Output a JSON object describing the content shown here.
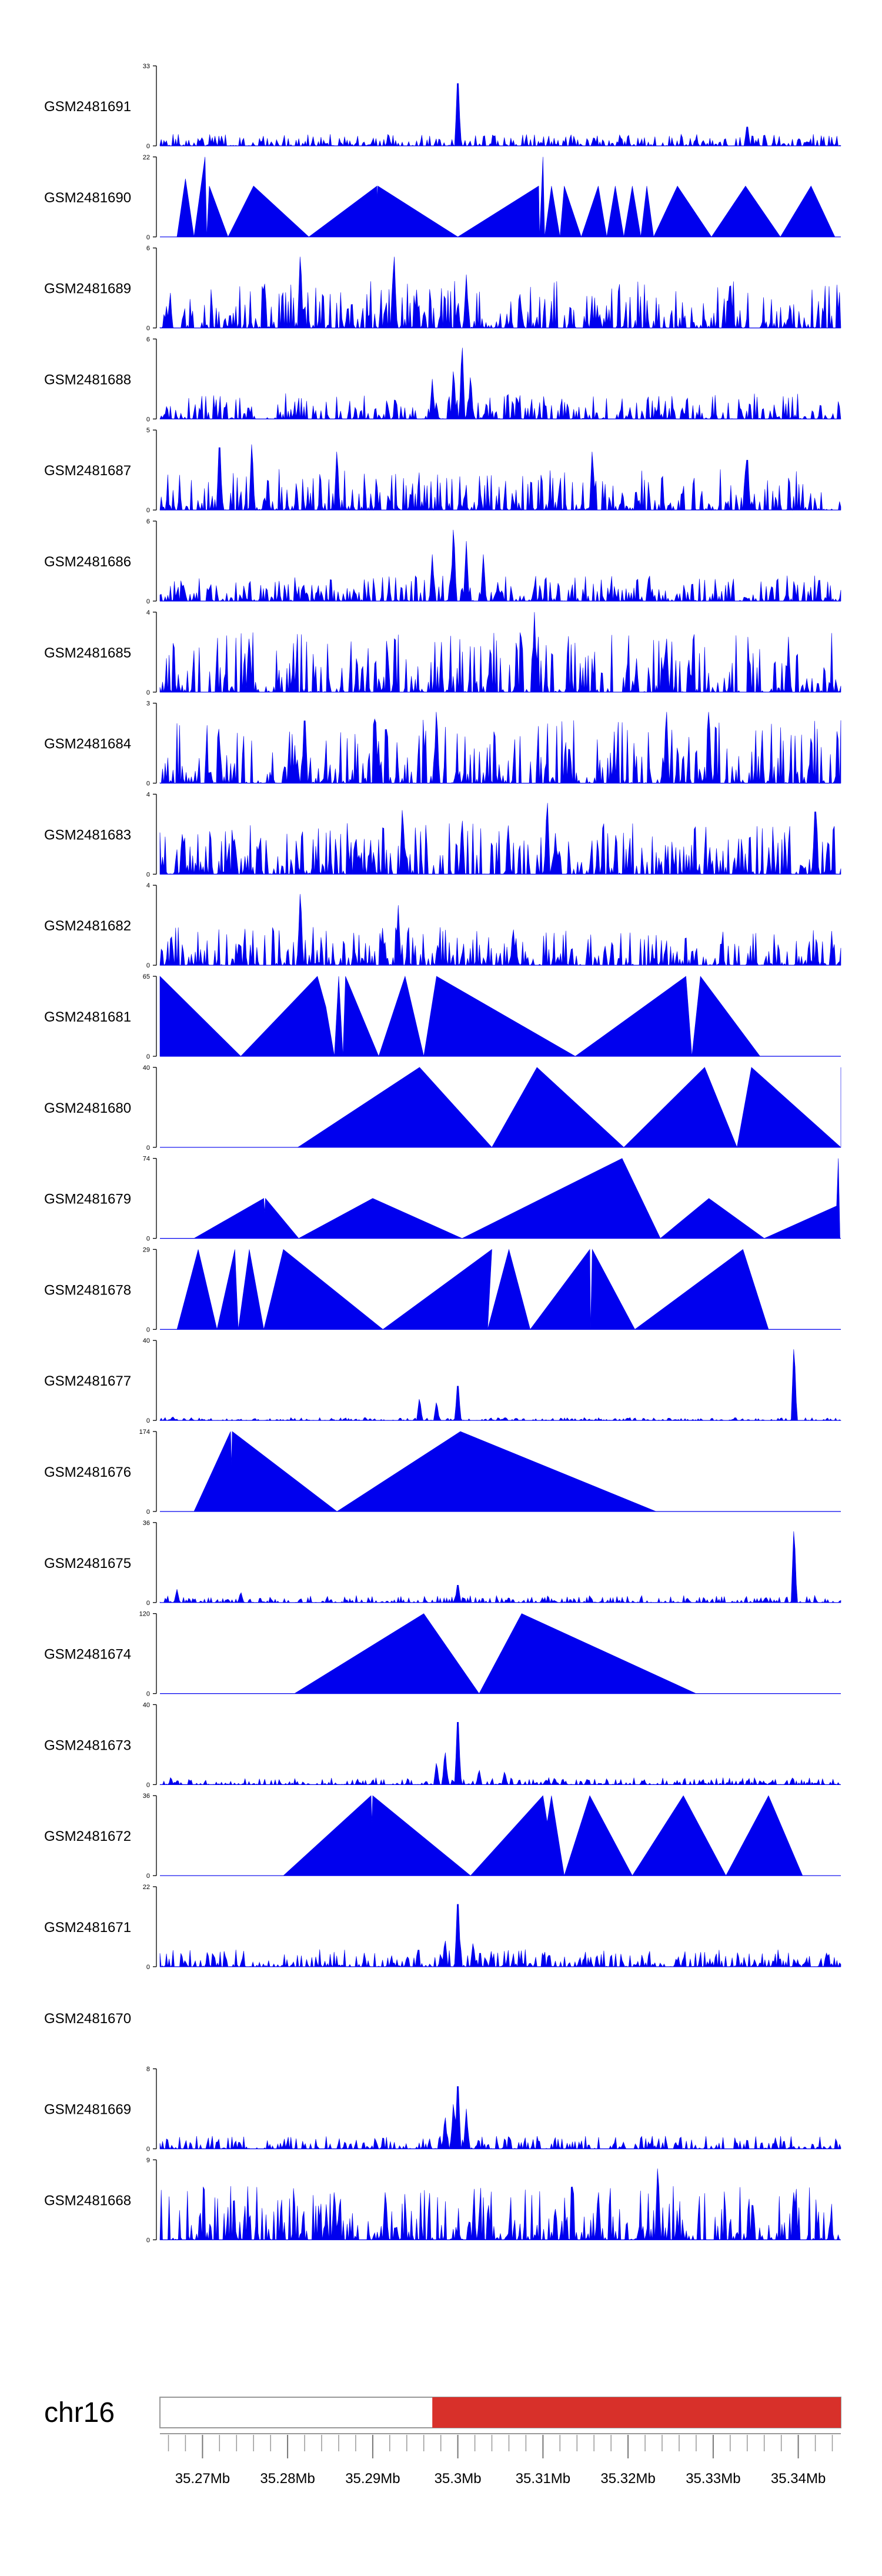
{
  "chart_data": {
    "type": "area",
    "chromosome": "chr16",
    "xlim": [
      35.265,
      35.345
    ],
    "x_ticks": [
      "35.27Mb",
      "35.28Mb",
      "35.29Mb",
      "35.3Mb",
      "35.31Mb",
      "35.32Mb",
      "35.33Mb",
      "35.34Mb"
    ],
    "x_tick_values": [
      35.27,
      35.28,
      35.29,
      35.3,
      35.31,
      35.32,
      35.33,
      35.34
    ],
    "ideogram": {
      "highlight_start": 35.297,
      "highlight_end": 35.345,
      "highlight_color": "#d8302a"
    },
    "series_color": "#0000ee",
    "tracks": [
      {
        "name": "GSM2481691",
        "ymax": 33,
        "ymin_label": "0",
        "ymax_label": "33",
        "style": "spiky",
        "peaks": [
          [
            35.3,
            33
          ],
          [
            35.334,
            10
          ],
          [
            35.316,
            4
          ]
        ],
        "base": 3,
        "seed": 1
      },
      {
        "name": "GSM2481690",
        "ymax": 22,
        "ymin_label": "0",
        "ymax_label": "22",
        "style": "points",
        "points": [
          [
            35.267,
            0
          ],
          [
            35.268,
            16
          ],
          [
            35.269,
            0
          ],
          [
            35.2703,
            22
          ],
          [
            35.2705,
            0
          ],
          [
            35.2708,
            14
          ],
          [
            35.273,
            0
          ],
          [
            35.276,
            14
          ],
          [
            35.2825,
            0
          ],
          [
            35.2905,
            14
          ],
          [
            35.2905,
            10
          ],
          [
            35.2906,
            14
          ],
          [
            35.3,
            0
          ],
          [
            35.3095,
            14
          ],
          [
            35.3096,
            0
          ],
          [
            35.31,
            22
          ],
          [
            35.3102,
            0
          ],
          [
            35.311,
            14
          ],
          [
            35.312,
            0
          ],
          [
            35.3125,
            14
          ],
          [
            35.3145,
            0
          ],
          [
            35.3165,
            14
          ],
          [
            35.3175,
            0
          ],
          [
            35.3185,
            14
          ],
          [
            35.3195,
            0
          ],
          [
            35.3205,
            14
          ],
          [
            35.3215,
            0
          ],
          [
            35.3222,
            14
          ],
          [
            35.323,
            0
          ],
          [
            35.3258,
            14
          ],
          [
            35.3298,
            0
          ],
          [
            35.3338,
            14
          ],
          [
            35.3379,
            0
          ],
          [
            35.3415,
            14
          ],
          [
            35.3443,
            0
          ]
        ]
      },
      {
        "name": "GSM2481689",
        "ymax": 6,
        "ymin_label": "0",
        "ymax_label": "6",
        "style": "spiky",
        "peaks": [
          [
            35.2815,
            6
          ],
          [
            35.2925,
            6
          ],
          [
            35.301,
            4
          ],
          [
            35.332,
            4
          ]
        ],
        "base": 2.2,
        "seed": 2
      },
      {
        "name": "GSM2481688",
        "ymax": 6,
        "ymin_label": "0",
        "ymax_label": "6",
        "style": "spiky",
        "peaks": [
          [
            35.3005,
            6
          ],
          [
            35.2995,
            4
          ],
          [
            35.297,
            3
          ],
          [
            35.3015,
            3.5
          ]
        ],
        "base": 1.2,
        "seed": 3
      },
      {
        "name": "GSM2481687",
        "ymax": 5,
        "ymin_label": "0",
        "ymax_label": "5",
        "style": "spiky",
        "peaks": [
          [
            35.272,
            5
          ],
          [
            35.2758,
            4.5
          ],
          [
            35.2858,
            4
          ],
          [
            35.3158,
            4
          ],
          [
            35.334,
            4
          ]
        ],
        "base": 1.6,
        "seed": 4
      },
      {
        "name": "GSM2481686",
        "ymax": 6,
        "ymin_label": "0",
        "ymax_label": "6",
        "style": "spiky",
        "peaks": [
          [
            35.2995,
            6
          ],
          [
            35.301,
            4.5
          ],
          [
            35.297,
            3.5
          ],
          [
            35.303,
            3.5
          ]
        ],
        "base": 1.2,
        "seed": 5
      },
      {
        "name": "GSM2481685",
        "ymax": 4,
        "ymin_label": "0",
        "ymax_label": "4",
        "style": "spiky",
        "peaks": [
          [
            35.309,
            4
          ],
          [
            35.2755,
            3
          ],
          [
            35.3245,
            3
          ]
        ],
        "base": 1.9,
        "seed": 6
      },
      {
        "name": "GSM2481684",
        "ymax": 3,
        "ymin_label": "0",
        "ymax_label": "3",
        "style": "spiky",
        "peaks": [
          [
            35.282,
            3
          ],
          [
            35.2975,
            3
          ],
          [
            35.3245,
            3
          ],
          [
            35.2903,
            3
          ],
          [
            35.3295,
            3
          ]
        ],
        "base": 1.5,
        "seed": 7
      },
      {
        "name": "GSM2481683",
        "ymax": 4,
        "ymin_label": "0",
        "ymax_label": "4",
        "style": "spiky",
        "peaks": [
          [
            35.3105,
            4
          ],
          [
            35.342,
            4
          ],
          [
            35.2935,
            3.6
          ],
          [
            35.3005,
            3
          ]
        ],
        "base": 1.6,
        "seed": 8
      },
      {
        "name": "GSM2481682",
        "ymax": 4,
        "ymin_label": "0",
        "ymax_label": "4",
        "style": "spiky",
        "peaks": [
          [
            35.2815,
            4
          ],
          [
            35.293,
            3
          ],
          [
            35.3065,
            2
          ]
        ],
        "base": 1.2,
        "seed": 9
      },
      {
        "name": "GSM2481681",
        "ymax": 65,
        "ymin_label": "0",
        "ymax_label": "65",
        "style": "points",
        "points": [
          [
            35.265,
            65
          ],
          [
            35.2745,
            0
          ],
          [
            35.2835,
            65
          ],
          [
            35.2845,
            40
          ],
          [
            35.2855,
            0
          ],
          [
            35.286,
            65
          ],
          [
            35.2865,
            0
          ],
          [
            35.2868,
            65
          ],
          [
            35.2907,
            0
          ],
          [
            35.2938,
            65
          ],
          [
            35.296,
            0
          ],
          [
            35.2975,
            65
          ],
          [
            35.3138,
            0
          ],
          [
            35.3268,
            65
          ],
          [
            35.3275,
            0
          ],
          [
            35.3285,
            65
          ],
          [
            35.3355,
            0
          ]
        ]
      },
      {
        "name": "GSM2481680",
        "ymax": 40,
        "ymin_label": "0",
        "ymax_label": "40",
        "style": "points",
        "points": [
          [
            35.2812,
            0
          ],
          [
            35.2955,
            40
          ],
          [
            35.304,
            0
          ],
          [
            35.3093,
            40
          ],
          [
            35.3195,
            0
          ],
          [
            35.329,
            40
          ],
          [
            35.3328,
            0
          ],
          [
            35.3345,
            40
          ],
          [
            35.345,
            0
          ],
          [
            35.345,
            40
          ]
        ]
      },
      {
        "name": "GSM2481679",
        "ymax": 74,
        "ymin_label": "0",
        "ymax_label": "74",
        "style": "points",
        "points": [
          [
            35.269,
            0
          ],
          [
            35.2772,
            37
          ],
          [
            35.2773,
            24
          ],
          [
            35.2774,
            37
          ],
          [
            35.2813,
            0
          ],
          [
            35.29,
            37
          ],
          [
            35.3005,
            0
          ],
          [
            35.3193,
            74
          ],
          [
            35.3238,
            0
          ],
          [
            35.3295,
            37
          ],
          [
            35.336,
            0
          ],
          [
            35.3445,
            30
          ],
          [
            35.3447,
            74
          ],
          [
            35.3449,
            0
          ]
        ]
      },
      {
        "name": "GSM2481678",
        "ymax": 29,
        "ymin_label": "0",
        "ymax_label": "29",
        "style": "points",
        "points": [
          [
            35.267,
            0
          ],
          [
            35.2695,
            29
          ],
          [
            35.2717,
            0
          ],
          [
            35.2738,
            29
          ],
          [
            35.2742,
            0
          ],
          [
            35.2755,
            29
          ],
          [
            35.2772,
            0
          ],
          [
            35.2795,
            29
          ],
          [
            35.2912,
            0
          ],
          [
            35.304,
            29
          ],
          [
            35.3035,
            0
          ],
          [
            35.306,
            29
          ],
          [
            35.3085,
            0
          ],
          [
            35.3155,
            29
          ],
          [
            35.3156,
            0
          ],
          [
            35.3158,
            29
          ],
          [
            35.3208,
            0
          ],
          [
            35.3335,
            29
          ],
          [
            35.3365,
            0
          ]
        ]
      },
      {
        "name": "GSM2481677",
        "ymax": 40,
        "ymin_label": "0",
        "ymax_label": "40",
        "style": "spiky",
        "peaks": [
          [
            35.3395,
            40
          ],
          [
            35.3,
            22
          ],
          [
            35.2955,
            12
          ],
          [
            35.2975,
            10
          ],
          [
            35.2665,
            2
          ]
        ],
        "base": 0.9,
        "seed": 10
      },
      {
        "name": "GSM2481676",
        "ymax": 174,
        "ymin_label": "0",
        "ymax_label": "174",
        "style": "points",
        "points": [
          [
            35.269,
            0
          ],
          [
            35.2733,
            174
          ],
          [
            35.2734,
            100
          ],
          [
            35.2735,
            174
          ],
          [
            35.2858,
            0
          ],
          [
            35.3003,
            174
          ],
          [
            35.3233,
            0
          ]
        ]
      },
      {
        "name": "GSM2481675",
        "ymax": 36,
        "ymin_label": "0",
        "ymax_label": "36",
        "style": "spiky",
        "peaks": [
          [
            35.3395,
            36
          ],
          [
            35.3,
            10
          ],
          [
            35.267,
            6
          ],
          [
            35.2745,
            5
          ]
        ],
        "base": 2,
        "seed": 11
      },
      {
        "name": "GSM2481674",
        "ymax": 120,
        "ymin_label": "0",
        "ymax_label": "120",
        "style": "points",
        "points": [
          [
            35.2808,
            0
          ],
          [
            35.296,
            120
          ],
          [
            35.3025,
            0
          ],
          [
            35.3075,
            120
          ],
          [
            35.328,
            0
          ]
        ]
      },
      {
        "name": "GSM2481673",
        "ymax": 40,
        "ymin_label": "0",
        "ymax_label": "40",
        "style": "spiky",
        "peaks": [
          [
            35.3,
            40
          ],
          [
            35.2985,
            18
          ],
          [
            35.2975,
            12
          ],
          [
            35.3025,
            8
          ],
          [
            35.3055,
            7
          ]
        ],
        "base": 2.2,
        "seed": 12
      },
      {
        "name": "GSM2481672",
        "ymax": 36,
        "ymin_label": "0",
        "ymax_label": "36",
        "style": "points",
        "points": [
          [
            35.2795,
            0
          ],
          [
            35.2898,
            36
          ],
          [
            35.2899,
            24
          ],
          [
            35.29,
            36
          ],
          [
            35.3015,
            0
          ],
          [
            35.31,
            36
          ],
          [
            35.3105,
            24
          ],
          [
            35.311,
            36
          ],
          [
            35.3125,
            0
          ],
          [
            35.3155,
            36
          ],
          [
            35.3205,
            0
          ],
          [
            35.3265,
            36
          ],
          [
            35.3315,
            0
          ],
          [
            35.3365,
            36
          ],
          [
            35.3405,
            0
          ]
        ]
      },
      {
        "name": "GSM2481671",
        "ymax": 22,
        "ymin_label": "0",
        "ymax_label": "22",
        "style": "spiky",
        "peaks": [
          [
            35.3,
            22
          ],
          [
            35.2985,
            8
          ],
          [
            35.3018,
            7
          ]
        ],
        "base": 3,
        "seed": 13
      },
      {
        "name": "GSM2481670",
        "ymax": 0,
        "style": "empty"
      },
      {
        "name": "GSM2481669",
        "ymax": 8,
        "ymin_label": "0",
        "ymax_label": "8",
        "style": "spiky",
        "peaks": [
          [
            35.3,
            8
          ],
          [
            35.2995,
            5
          ],
          [
            35.301,
            4
          ],
          [
            35.2985,
            3.5
          ]
        ],
        "base": 0.8,
        "seed": 14
      },
      {
        "name": "GSM2481668",
        "ymax": 9,
        "ymin_label": "0",
        "ymax_label": "9",
        "style": "spiky",
        "peaks": [
          [
            35.3235,
            9
          ],
          [
            35.2855,
            6
          ],
          [
            35.2915,
            6
          ],
          [
            35.3165,
            6
          ],
          [
            35.3395,
            6
          ]
        ],
        "base": 3.8,
        "seed": 15
      }
    ]
  }
}
